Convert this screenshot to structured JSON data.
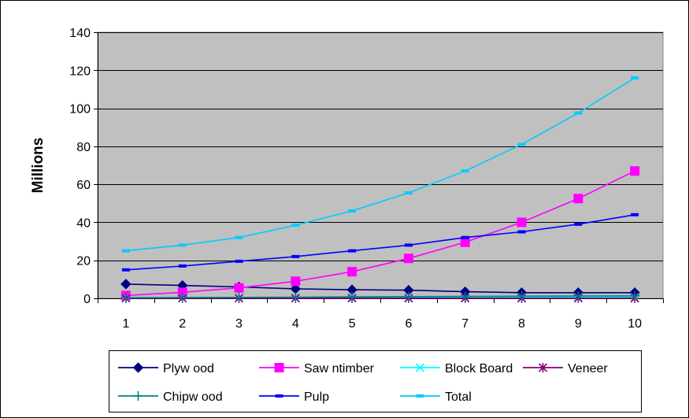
{
  "chart_data": {
    "type": "line",
    "title": "",
    "xlabel": "",
    "ylabel": "Millions",
    "x": [
      1,
      2,
      3,
      4,
      5,
      6,
      7,
      8,
      9,
      10
    ],
    "ylim": [
      0,
      140
    ],
    "yticks": [
      0,
      20,
      40,
      60,
      80,
      100,
      120,
      140
    ],
    "grid": true,
    "legend_position": "bottom",
    "plot_background": "#c0c0c0",
    "series": [
      {
        "name": "Plyw ood",
        "color": "#000080",
        "marker": "diamond",
        "values": [
          7.5,
          6.8,
          6.0,
          5.0,
          4.5,
          4.3,
          3.5,
          3.0,
          3.0,
          3.0
        ]
      },
      {
        "name": "Saw ntimber",
        "color": "#ff00ff",
        "marker": "square",
        "values": [
          1.5,
          3.2,
          5.5,
          9.0,
          14.0,
          21.0,
          29.5,
          40.0,
          52.5,
          67.0
        ]
      },
      {
        "name": "Block Board",
        "color": "#00ffff",
        "marker": "x",
        "values": [
          0.3,
          0.3,
          0.3,
          0.3,
          0.4,
          0.4,
          0.4,
          0.5,
          0.5,
          0.5
        ]
      },
      {
        "name": "Veneer",
        "color": "#800080",
        "marker": "star",
        "values": [
          0.1,
          0.1,
          0.1,
          0.1,
          0.1,
          0.1,
          0.1,
          0.1,
          0.1,
          0.1
        ]
      },
      {
        "name": "Chipw ood",
        "color": "#008080",
        "marker": "plus",
        "values": [
          0.3,
          0.4,
          0.5,
          0.6,
          0.8,
          0.9,
          1.0,
          1.1,
          1.2,
          1.3
        ]
      },
      {
        "name": "Pulp",
        "color": "#0000ff",
        "marker": "dash",
        "values": [
          15.0,
          17.0,
          19.5,
          22.0,
          25.0,
          28.0,
          32.0,
          35.0,
          39.0,
          44.0
        ]
      },
      {
        "name": "Total",
        "color": "#00ccff",
        "marker": "dash",
        "values": [
          25.0,
          28.0,
          32.0,
          38.5,
          46.0,
          55.5,
          67.0,
          81.0,
          97.5,
          116.0
        ]
      }
    ]
  }
}
